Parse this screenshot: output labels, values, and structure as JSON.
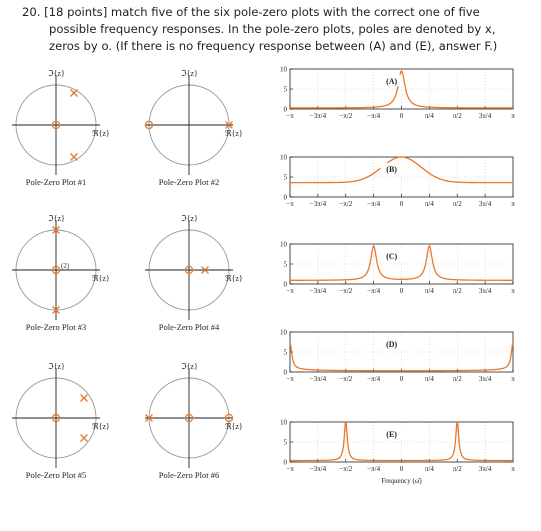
{
  "question": {
    "lines": [
      "20. [18 points] match five of the six pole-zero plots with the correct one of five",
      "possible frequency responses. In the pole-zero plots, poles are denoted by x,",
      "zeros by o. (If there is no frequency response between (A) and (E), answer F.)"
    ]
  },
  "colors": {
    "accent": "#e8782a",
    "axis": "#222222",
    "circle": "#999999"
  },
  "pz_axis_labels": {
    "imag": "ℑ{z}",
    "real": "ℜ{z}"
  },
  "pole_zero_plots": [
    {
      "label": "Pole-Zero Plot #1",
      "poles": [
        [
          0.45,
          0.8
        ],
        [
          0.45,
          -0.8
        ]
      ],
      "zeros": [
        [
          0,
          0
        ]
      ],
      "annotation": ""
    },
    {
      "label": "Pole-Zero Plot #2",
      "poles": [
        [
          1.0,
          0
        ]
      ],
      "zeros": [
        [
          -1.0,
          0
        ]
      ],
      "annotation": ""
    },
    {
      "label": "Pole-Zero Plot #3",
      "poles": [
        [
          0,
          1.0
        ],
        [
          0,
          -1.0
        ]
      ],
      "zeros": [
        [
          0,
          0
        ]
      ],
      "annotation": "(2)"
    },
    {
      "label": "Pole-Zero Plot #4",
      "poles": [
        [
          0.4,
          0
        ]
      ],
      "zeros": [
        [
          0,
          0
        ]
      ],
      "annotation": ""
    },
    {
      "label": "Pole-Zero Plot #5",
      "poles": [
        [
          0.7,
          0.5
        ],
        [
          0.7,
          -0.5
        ]
      ],
      "zeros": [
        [
          0,
          0
        ]
      ],
      "annotation": ""
    },
    {
      "label": "Pole-Zero Plot #6",
      "poles": [
        [
          -1.0,
          0
        ]
      ],
      "zeros": [
        [
          0,
          0
        ],
        [
          1.0,
          0
        ]
      ],
      "annotation": ""
    }
  ],
  "chart_data": [
    {
      "type": "line",
      "label": "(A)",
      "ylim": [
        0,
        10
      ],
      "yticks": [
        "0",
        "5",
        "10"
      ],
      "xlim": [
        "-π",
        "π"
      ],
      "curve": "single-peak",
      "peak_x": 0,
      "peak_y": 9.5
    },
    {
      "type": "line",
      "label": "(B)",
      "ylim": [
        0,
        10
      ],
      "yticks": [
        "0",
        "5",
        "10"
      ],
      "xlim": [
        "-π",
        "π"
      ],
      "curve": "broad-hump",
      "peak_x": 0,
      "peak_y": 10,
      "edge_y": 3.6
    },
    {
      "type": "line",
      "label": "(C)",
      "ylim": [
        0,
        10
      ],
      "yticks": [
        "0",
        "5",
        "10"
      ],
      "xlim": [
        "-π",
        "π"
      ],
      "curve": "double-peak",
      "peak_x": [
        -0.785,
        0.785
      ],
      "peak_y": 9.5
    },
    {
      "type": "line",
      "label": "(D)",
      "ylim": [
        0,
        10
      ],
      "yticks": [
        "0",
        "5",
        "10"
      ],
      "xlim": [
        "-π",
        "π"
      ],
      "curve": "edge-peaks",
      "peak_x": [
        -3.1416,
        3.1416
      ],
      "peak_y": 9.5
    },
    {
      "type": "line",
      "label": "(E)",
      "ylim": [
        0,
        10
      ],
      "yticks": [
        "0",
        "5",
        "10"
      ],
      "xlim": [
        "-π",
        "π"
      ],
      "curve": "double-peak",
      "peak_x": [
        -1.571,
        1.571
      ],
      "peak_y": 10,
      "xlabel": "Frequency (ω̂)"
    }
  ],
  "x_tick_labels": [
    "−π",
    "−3π/4",
    "−π/2",
    "−π/4",
    "0",
    "π/4",
    "π/2",
    "3π/4",
    "π"
  ]
}
